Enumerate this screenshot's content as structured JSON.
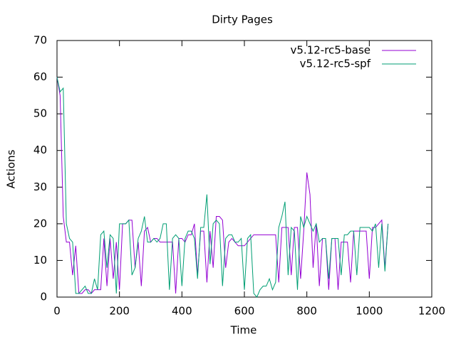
{
  "chart_data": {
    "type": "line",
    "title": "Dirty Pages",
    "x_label": "Time",
    "y_label": "Actions",
    "x": [
      0,
      10,
      20,
      30,
      40,
      50,
      60,
      70,
      80,
      90,
      100,
      110,
      120,
      130,
      140,
      150,
      160,
      170,
      180,
      190,
      200,
      210,
      220,
      230,
      240,
      250,
      260,
      270,
      280,
      290,
      300,
      310,
      320,
      330,
      340,
      350,
      360,
      370,
      380,
      390,
      400,
      410,
      420,
      430,
      440,
      450,
      460,
      470,
      480,
      490,
      500,
      510,
      520,
      530,
      540,
      550,
      560,
      570,
      580,
      590,
      600,
      610,
      620,
      630,
      640,
      650,
      660,
      670,
      680,
      690,
      700,
      710,
      720,
      730,
      740,
      750,
      760,
      770,
      780,
      790,
      800,
      810,
      820,
      830,
      840,
      850,
      860,
      870,
      880,
      890,
      900,
      910,
      920,
      930,
      940,
      950,
      960,
      970,
      980,
      990,
      1000,
      1010,
      1020,
      1030,
      1040,
      1050,
      1060
    ],
    "series": [
      {
        "name": "v5.12-rc5-base",
        "color": "#9400d3",
        "values": [
          60,
          55,
          22,
          15,
          15,
          6,
          14,
          1,
          1,
          2,
          2,
          1,
          2,
          2,
          2,
          16,
          3,
          16,
          5,
          15,
          2,
          20,
          20,
          21,
          21,
          8,
          15,
          3,
          18,
          19,
          15,
          16,
          16,
          15,
          15,
          15,
          15,
          15,
          1,
          16,
          16,
          15,
          17,
          17,
          20,
          6,
          18,
          18,
          4,
          18,
          8,
          22,
          22,
          21,
          8,
          15,
          16,
          15,
          14,
          14,
          14,
          15,
          16,
          17,
          17,
          17,
          17,
          17,
          17,
          17,
          17,
          4,
          19,
          19,
          19,
          6,
          19,
          19,
          5,
          18,
          34,
          28,
          8,
          20,
          3,
          16,
          16,
          2,
          16,
          16,
          2,
          15,
          15,
          15,
          4,
          18,
          18,
          18,
          18,
          18,
          5,
          19,
          19,
          20,
          21,
          8,
          20
        ]
      },
      {
        "name": "v5.12-rc5-spf",
        "color": "#009e73",
        "values": [
          60,
          56,
          57,
          20,
          16,
          15,
          1,
          1,
          2,
          3,
          1,
          1,
          5,
          2,
          17,
          18,
          8,
          17,
          16,
          1,
          20,
          20,
          20,
          21,
          6,
          8,
          16,
          18,
          22,
          15,
          15,
          16,
          15,
          16,
          20,
          20,
          2,
          16,
          17,
          16,
          3,
          16,
          18,
          18,
          16,
          5,
          19,
          19,
          28,
          9,
          20,
          21,
          20,
          3,
          16,
          17,
          17,
          15,
          15,
          16,
          2,
          16,
          17,
          1,
          0,
          2,
          3,
          3,
          5,
          2,
          4,
          19,
          22,
          26,
          6,
          19,
          18,
          2,
          22,
          19,
          22,
          20,
          18,
          20,
          15,
          16,
          16,
          5,
          16,
          16,
          16,
          6,
          17,
          17,
          18,
          18,
          6,
          19,
          19,
          19,
          19,
          18,
          20,
          8,
          20,
          7,
          20
        ]
      }
    ],
    "xlim": [
      0,
      1200
    ],
    "xticks": [
      0,
      200,
      400,
      600,
      800,
      1000,
      1200
    ],
    "ylim": [
      0,
      70
    ],
    "yticks": [
      0,
      10,
      20,
      30,
      40,
      50,
      60,
      70
    ],
    "legend": "top-right"
  }
}
